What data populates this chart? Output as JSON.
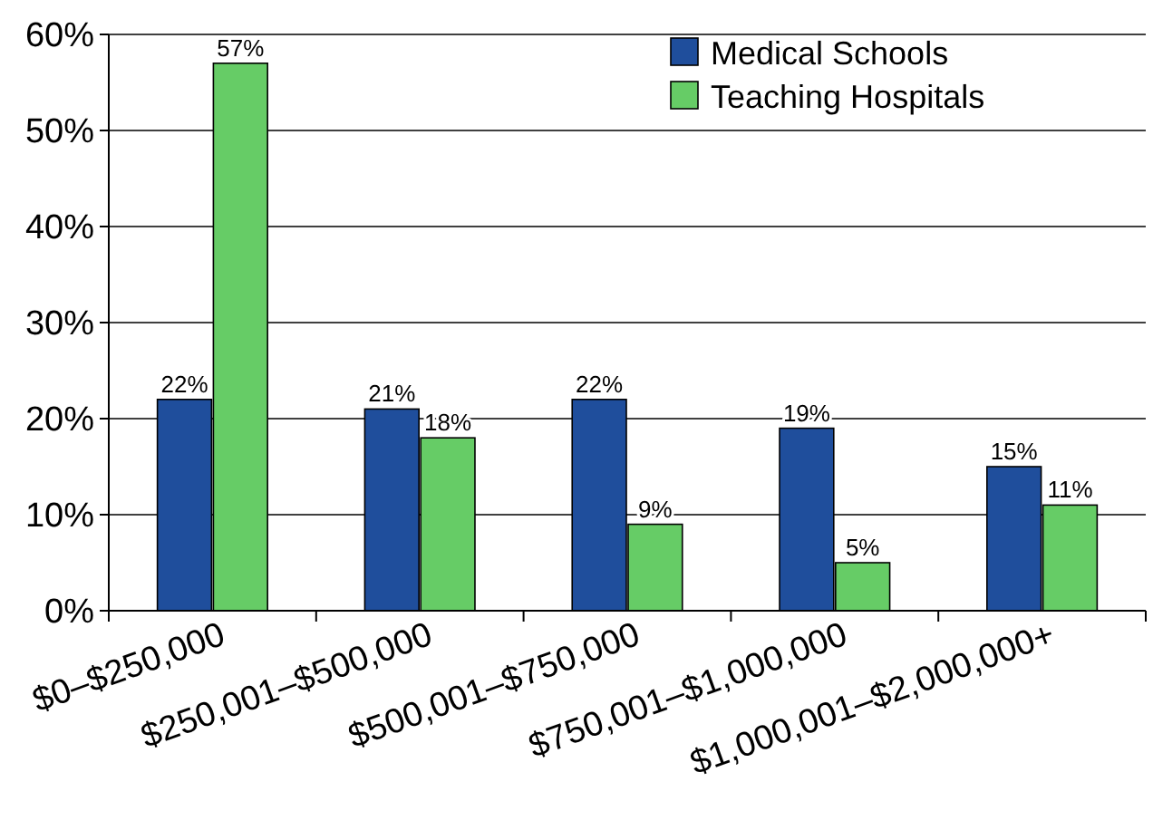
{
  "chart_data": {
    "type": "bar",
    "categories": [
      "$0–$250,000",
      "$250,001–$500,000",
      "$500,001–$750,000",
      "$750,001–$1,000,000",
      "$1,000,001–$2,000,000+"
    ],
    "series": [
      {
        "name": "Medical Schools",
        "color": "#1f4e9c",
        "values": [
          22,
          21,
          22,
          19,
          15
        ],
        "value_labels": [
          "22%",
          "21%",
          "22%",
          "19%",
          "15%"
        ]
      },
      {
        "name": "Teaching Hospitals",
        "color": "#66cc66",
        "values": [
          57,
          18,
          9,
          5,
          11
        ],
        "value_labels": [
          "57%",
          "18%",
          "9%",
          "5%",
          "11%"
        ]
      }
    ],
    "ylim": [
      0,
      60
    ],
    "yticks": [
      {
        "value": 0,
        "label": "0%"
      },
      {
        "value": 10,
        "label": "10%"
      },
      {
        "value": 20,
        "label": "20%"
      },
      {
        "value": 30,
        "label": "30%"
      },
      {
        "value": 40,
        "label": "40%"
      },
      {
        "value": 50,
        "label": "50%"
      },
      {
        "value": 60,
        "label": "60%"
      }
    ],
    "grid": "y",
    "legend": "top right"
  }
}
